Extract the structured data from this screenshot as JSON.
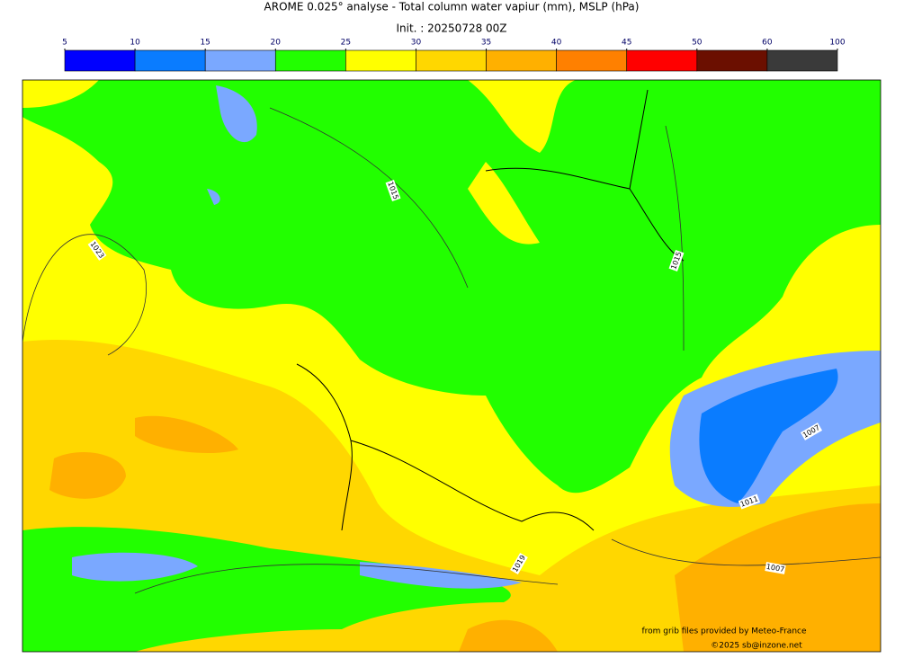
{
  "title": "AROME 0.025° analyse - Total column water vapiur (mm), MSLP (hPa)",
  "subtitle": "Init. : 20250728 00Z",
  "colorbar": {
    "ticks": [
      5,
      10,
      15,
      20,
      25,
      30,
      35,
      40,
      45,
      50,
      60,
      100
    ],
    "colors": [
      "#0000ff",
      "#0a7cff",
      "#7aa8ff",
      "#22ff00",
      "#ffff00",
      "#ffd700",
      "#ffb000",
      "#ff8000",
      "#ff0000",
      "#6b0f00",
      "#3a3a3a"
    ]
  },
  "isobar_labels": [
    1015,
    1023,
    1015,
    1007,
    1011,
    1019,
    1007
  ],
  "credits": [
    "from grib files provided by Meteo-France",
    "©2025 sb@inzone.net"
  ]
}
